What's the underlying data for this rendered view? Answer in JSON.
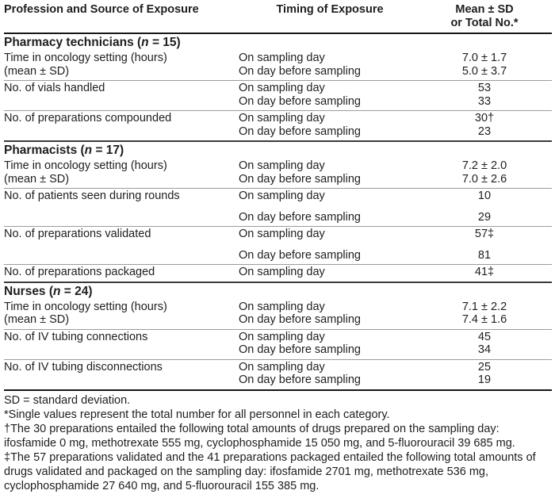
{
  "colors": {
    "background": "#ffffff",
    "text": "#1e1e1e",
    "rule_heavy": "#161616",
    "rule_section": "#3a3a3a",
    "rule_row": "#9b9b9b"
  },
  "header": {
    "col1": "Profession and Source of Exposure",
    "col2": "Timing of Exposure",
    "col3_line1": "Mean ± SD",
    "col3_line2": "or Total No.*"
  },
  "sections": [
    {
      "title": {
        "pre": "Pharmacy technicians (",
        "n": "n",
        "post": " = 15)"
      },
      "rows": [
        {
          "labels": [
            "Time in oncology setting (hours)",
            "(mean ± SD)"
          ],
          "entries": [
            {
              "timing": "On sampling day",
              "value": "7.0 ± 1.7"
            },
            {
              "timing": "On day before sampling",
              "value": "5.0 ± 3.7"
            }
          ]
        },
        {
          "labels": [
            "No. of vials handled"
          ],
          "entries": [
            {
              "timing": "On sampling day",
              "value": "53"
            },
            {
              "timing": "On day before sampling",
              "value": "33"
            }
          ]
        },
        {
          "labels": [
            "No. of preparations compounded"
          ],
          "entries": [
            {
              "timing": "On sampling day",
              "value": "30†"
            },
            {
              "timing": "On day before sampling",
              "value": "23"
            }
          ]
        }
      ]
    },
    {
      "title": {
        "pre": "Pharmacists (",
        "n": "n",
        "post": " = 17)"
      },
      "rows": [
        {
          "labels": [
            "Time in oncology setting (hours)",
            "(mean ± SD)"
          ],
          "entries": [
            {
              "timing": "On sampling day",
              "value": "7.2 ± 2.0"
            },
            {
              "timing": "On day before sampling",
              "value": "7.0 ± 2.6"
            }
          ]
        },
        {
          "labels": [
            "No. of patients seen during rounds"
          ],
          "entries": [
            {
              "timing": "On sampling day",
              "value": "10"
            },
            {
              "timing": "On day before sampling",
              "value": "29"
            }
          ]
        },
        {
          "labels": [
            "No. of preparations validated"
          ],
          "entries": [
            {
              "timing": "On sampling day",
              "value": "57‡"
            },
            {
              "timing": "On day before sampling",
              "value": "81"
            }
          ]
        },
        {
          "labels": [
            "No. of preparations packaged"
          ],
          "entries": [
            {
              "timing": "On sampling day",
              "value": "41‡"
            }
          ]
        }
      ]
    },
    {
      "title": {
        "pre": "Nurses (",
        "n": "n",
        "post": " = 24)"
      },
      "rows": [
        {
          "labels": [
            "Time in oncology setting (hours)",
            "(mean ± SD)"
          ],
          "entries": [
            {
              "timing": "On sampling day",
              "value": "7.1 ± 2.2"
            },
            {
              "timing": "On day before sampling",
              "value": "7.4 ± 1.6"
            }
          ]
        },
        {
          "labels": [
            "No. of IV tubing connections"
          ],
          "entries": [
            {
              "timing": "On sampling day",
              "value": "45"
            },
            {
              "timing": "On day before sampling",
              "value": "34"
            }
          ]
        },
        {
          "labels": [
            "No. of IV tubing disconnections"
          ],
          "entries": [
            {
              "timing": "On sampling day",
              "value": "25"
            },
            {
              "timing": "On day before sampling",
              "value": "19"
            }
          ]
        }
      ]
    }
  ],
  "footnotes": [
    "SD = standard deviation.",
    "*Single values represent the total number for all personnel in each category.",
    "†The 30 preparations entailed the following total amounts of drugs prepared on the sampling day: ifosfamide 0 mg, methotrexate 555 mg, cyclophosphamide 15 050 mg, and 5-fluorouracil 39 685 mg.",
    "‡The 57 preparations validated and the 41 preparations packaged entailed the following total amounts of drugs validated and packaged on the sampling day: ifosfamide 2701 mg, methotrexate 536 mg, cyclophosphamide 27 640 mg, and 5-fluorouracil 155 385 mg."
  ]
}
